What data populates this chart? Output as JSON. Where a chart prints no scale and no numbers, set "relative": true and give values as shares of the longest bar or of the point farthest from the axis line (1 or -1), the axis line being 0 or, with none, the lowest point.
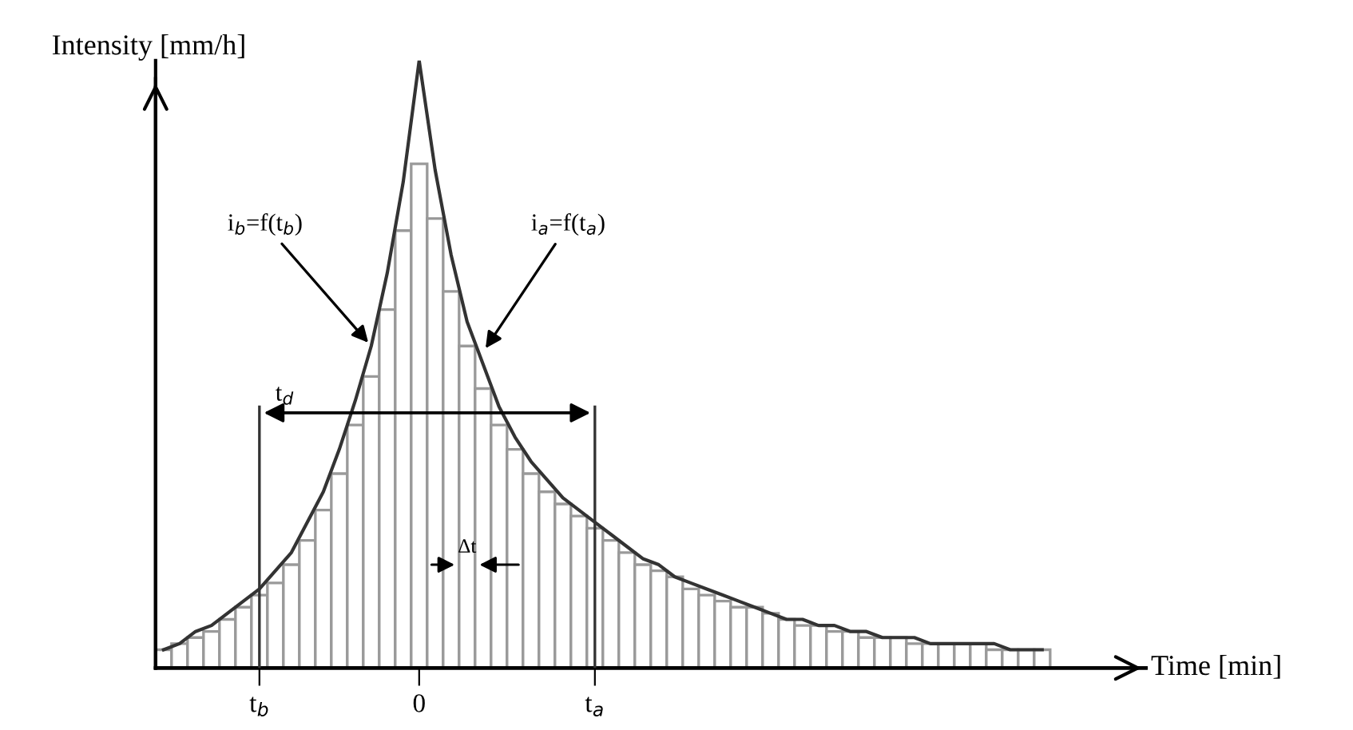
{
  "chart_data": {
    "type": "bar",
    "relative": true,
    "xlabel": "Time [min]",
    "ylabel": "Intensity [mm/h]",
    "categories": [
      null,
      null,
      null,
      null,
      null,
      null,
      "t$_{b}$",
      null,
      null,
      null,
      null,
      null,
      null,
      null,
      null,
      null,
      "0",
      null,
      null,
      null,
      null,
      null,
      null,
      null,
      null,
      null,
      null,
      "t$_{a}$",
      null,
      null,
      null,
      null,
      null,
      null,
      null,
      null,
      null,
      null,
      null,
      null,
      null,
      null,
      null,
      null,
      null,
      null,
      null,
      null,
      null,
      null,
      null,
      null,
      null,
      null,
      null,
      null
    ],
    "series": [
      {
        "color": "#9a9a9a",
        "values": [
          0.03,
          0.04,
          0.05,
          0.06,
          0.08,
          0.1,
          0.12,
          0.14,
          0.17,
          0.21,
          0.26,
          0.32,
          0.4,
          0.48,
          0.59,
          0.72,
          0.83,
          0.74,
          0.62,
          0.53,
          0.46,
          0.4,
          0.36,
          0.32,
          0.29,
          0.27,
          0.25,
          0.23,
          0.21,
          0.19,
          0.17,
          0.16,
          0.15,
          0.13,
          0.12,
          0.11,
          0.1,
          0.1,
          0.09,
          0.08,
          0.07,
          0.07,
          0.06,
          0.06,
          0.05,
          0.05,
          0.05,
          0.04,
          0.04,
          0.04,
          0.04,
          0.04,
          0.03,
          0.03,
          0.03,
          0.03
        ]
      },
      {
        "type": "line",
        "color": "#333333",
        "values": [
          0.03,
          0.04,
          0.06,
          0.07,
          0.09,
          0.11,
          0.13,
          0.16,
          0.19,
          0.24,
          0.29,
          0.36,
          0.44,
          0.53,
          0.65,
          0.8,
          1,
          0.82,
          0.68,
          0.57,
          0.5,
          0.43,
          0.38,
          0.34,
          0.31,
          0.28,
          0.26,
          0.24,
          0.22,
          0.2,
          0.18,
          0.17,
          0.15,
          0.14,
          0.13,
          0.12,
          0.11,
          0.1,
          0.09,
          0.08,
          0.08,
          0.07,
          0.07,
          0.06,
          0.06,
          0.05,
          0.05,
          0.05,
          0.04,
          0.04,
          0.04,
          0.04,
          0.04,
          0.03,
          0.03,
          0.03
        ]
      }
    ],
    "ref_lines": [
      {
        "axis": "x",
        "value": "t$_{b}$"
      },
      {
        "axis": "x",
        "value": "t$_{a}$"
      }
    ],
    "annotations": [
      "i$_{b}$=f(t$_{b}$)",
      "i$_{a}$=f(t$_{a}$)",
      "t$_{d}$",
      "Δt"
    ],
    "grid": false,
    "marker": "none",
    "line_style": "solid"
  }
}
